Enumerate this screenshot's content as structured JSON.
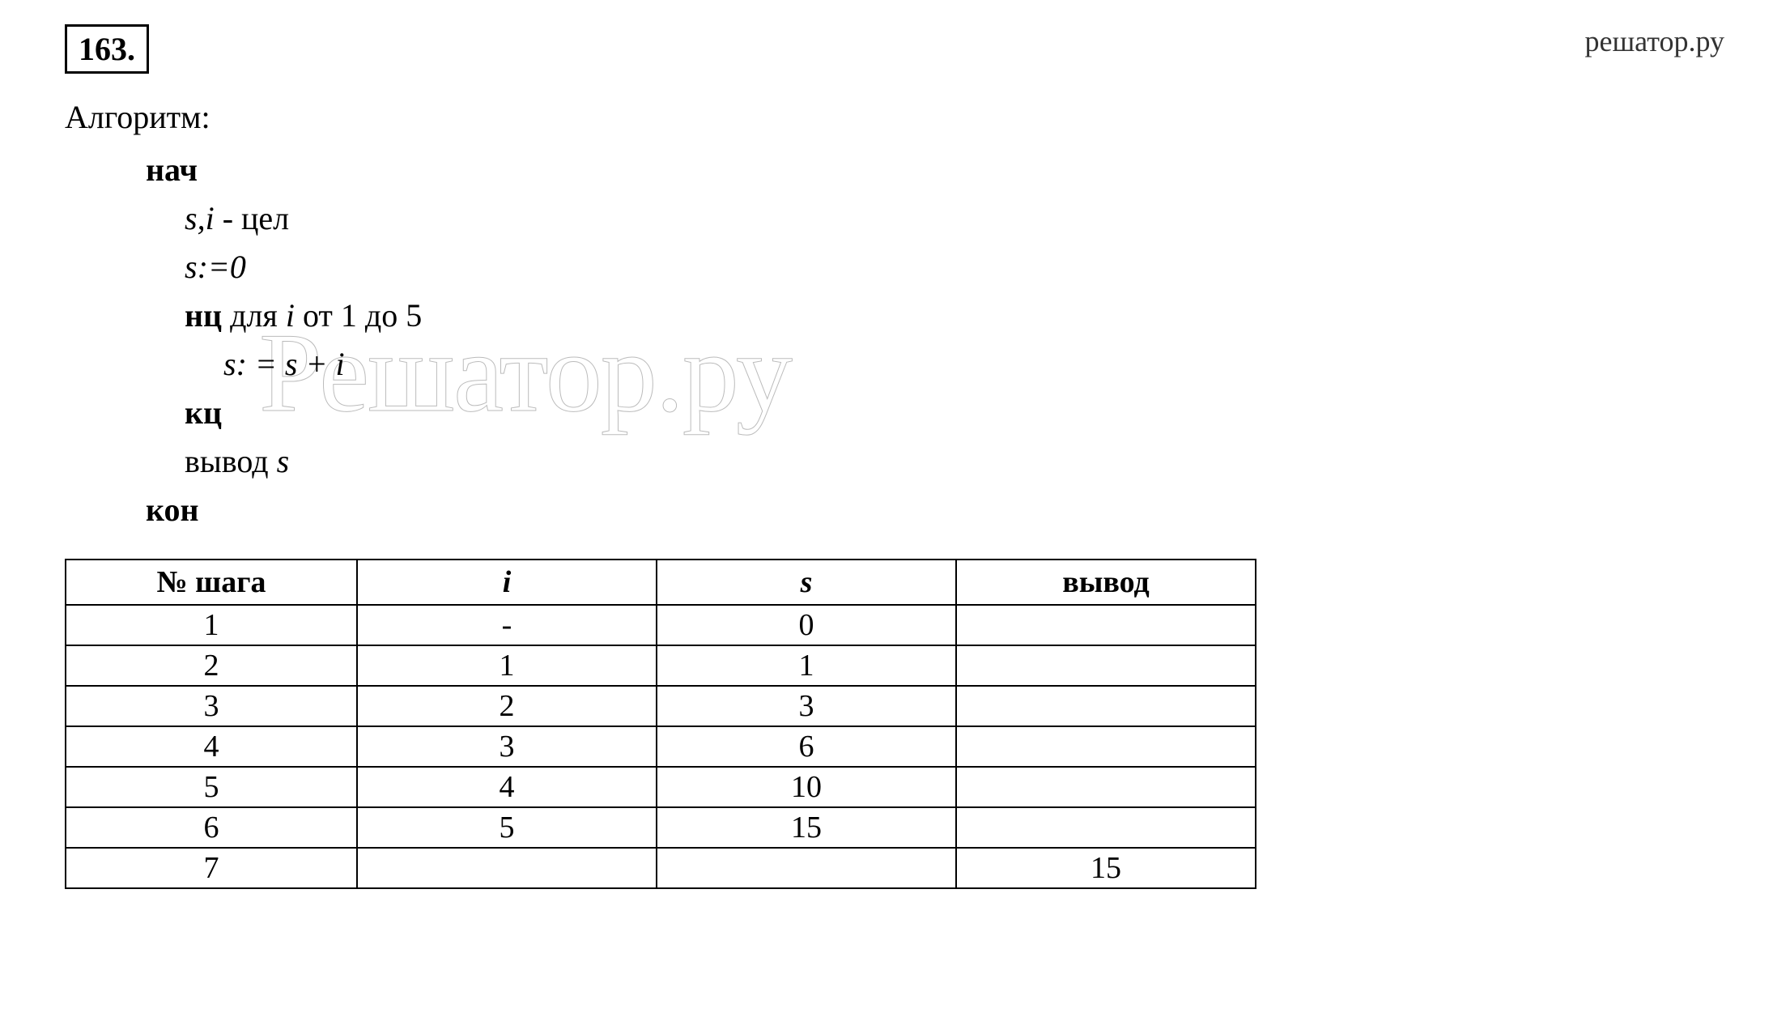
{
  "watermark_top": "решатор.ру",
  "watermark_center": "Решатор.ру",
  "problem_number": "163.",
  "algorithm_label": "Алгоритм:",
  "algorithm": {
    "line1": "нач",
    "line2_vars": "s,i",
    "line2_rest": " - цел",
    "line3": "s:=0",
    "line4_bold": "нц",
    "line4_rest1": " для ",
    "line4_i": "i",
    "line4_rest2": " от 1 до 5",
    "line5": "s: = s + i",
    "line6": "кц",
    "line7_text": "вывод ",
    "line7_var": "s",
    "line8": "кон"
  },
  "table": {
    "headers": {
      "col1": "№ шага",
      "col2": "i",
      "col3": "s",
      "col4": "вывод"
    },
    "rows": [
      {
        "step": "1",
        "i": "-",
        "s": "0",
        "out": ""
      },
      {
        "step": "2",
        "i": "1",
        "s": "1",
        "out": ""
      },
      {
        "step": "3",
        "i": "2",
        "s": "3",
        "out": ""
      },
      {
        "step": "4",
        "i": "3",
        "s": "6",
        "out": ""
      },
      {
        "step": "5",
        "i": "4",
        "s": "10",
        "out": ""
      },
      {
        "step": "6",
        "i": "5",
        "s": "15",
        "out": ""
      },
      {
        "step": "7",
        "i": "",
        "s": "",
        "out": "15"
      }
    ]
  }
}
